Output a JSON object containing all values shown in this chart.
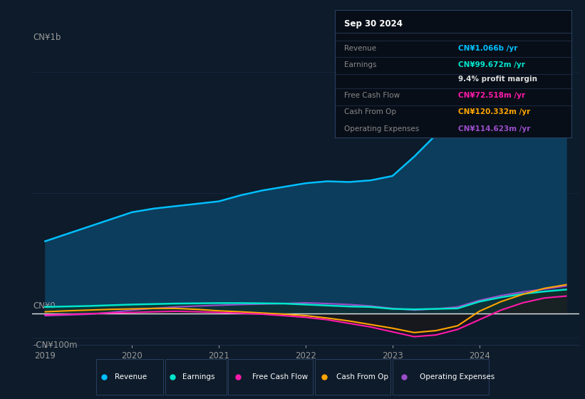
{
  "background_color": "#0d1b2a",
  "plot_bg_color": "#0d1b2a",
  "info_box_title": "Sep 30 2024",
  "info_box_bg": "#080e18",
  "info_box_border": "#2a4060",
  "x_labels": [
    "2019",
    "2020",
    "2021",
    "2022",
    "2023",
    "2024"
  ],
  "x_values": [
    2019.0,
    2019.25,
    2019.5,
    2019.75,
    2020.0,
    2020.25,
    2020.5,
    2020.75,
    2021.0,
    2021.25,
    2021.5,
    2021.75,
    2022.0,
    2022.25,
    2022.5,
    2022.75,
    2023.0,
    2023.25,
    2023.5,
    2023.75,
    2024.0,
    2024.25,
    2024.5,
    2024.75,
    2025.0
  ],
  "revenue": [
    300,
    330,
    360,
    390,
    420,
    435,
    445,
    455,
    465,
    490,
    510,
    525,
    540,
    548,
    545,
    552,
    570,
    650,
    740,
    840,
    910,
    960,
    1005,
    1050,
    1066
  ],
  "earnings": [
    28,
    30,
    32,
    35,
    38,
    40,
    42,
    43,
    44,
    44,
    43,
    42,
    38,
    34,
    30,
    28,
    20,
    18,
    20,
    22,
    50,
    68,
    82,
    92,
    100
  ],
  "free_cash_flow": [
    -5,
    -3,
    0,
    3,
    5,
    8,
    10,
    8,
    5,
    2,
    -2,
    -8,
    -15,
    -25,
    -40,
    -55,
    -75,
    -95,
    -88,
    -65,
    -25,
    15,
    45,
    65,
    73
  ],
  "cash_from_op": [
    8,
    12,
    15,
    18,
    20,
    22,
    22,
    18,
    12,
    8,
    3,
    -2,
    -8,
    -18,
    -30,
    -45,
    -60,
    -78,
    -70,
    -50,
    10,
    50,
    80,
    105,
    120
  ],
  "operating_expenses": [
    -8,
    -5,
    -2,
    5,
    15,
    22,
    28,
    32,
    35,
    38,
    40,
    42,
    45,
    42,
    38,
    32,
    22,
    15,
    20,
    28,
    55,
    75,
    90,
    102,
    115
  ],
  "revenue_line_color": "#00bfff",
  "revenue_fill_color": "#0d3d5c",
  "earnings_line_color": "#00e5cc",
  "earnings_fill_color": "#0a3530",
  "fcf_line_color": "#ff1aaa",
  "cfo_line_color": "#ffa500",
  "opex_line_color": "#9b4dca",
  "opex_fill_color": "#2a1a5e",
  "grid_color": "#1e3050",
  "text_color": "#999999",
  "white_line": "#ffffff",
  "ylim": [
    -130,
    1100
  ],
  "xlim_left": 2018.85,
  "xlim_right": 2025.15,
  "y_label_1b": "CN¥1b",
  "y_label_0": "CN¥0",
  "y_label_neg": "-CN¥100m",
  "legend_items": [
    {
      "label": "Revenue",
      "color": "#00bfff"
    },
    {
      "label": "Earnings",
      "color": "#00e5cc"
    },
    {
      "label": "Free Cash Flow",
      "color": "#ff1aaa"
    },
    {
      "label": "Cash From Op",
      "color": "#ffa500"
    },
    {
      "label": "Operating Expenses",
      "color": "#9b4dca"
    }
  ],
  "info_rows": [
    {
      "label": "Revenue",
      "value": "CN¥1.066b /yr",
      "label_color": "#888888",
      "value_color": "#00bfff"
    },
    {
      "label": "Earnings",
      "value": "CN¥99.672m /yr",
      "label_color": "#888888",
      "value_color": "#00e5cc"
    },
    {
      "label": "",
      "value": "9.4% profit margin",
      "label_color": "#888888",
      "value_color": "#dddddd"
    },
    {
      "label": "Free Cash Flow",
      "value": "CN¥72.518m /yr",
      "label_color": "#888888",
      "value_color": "#ff1aaa"
    },
    {
      "label": "Cash From Op",
      "value": "CN¥120.332m /yr",
      "label_color": "#888888",
      "value_color": "#ffa500"
    },
    {
      "label": "Operating Expenses",
      "value": "CN¥114.623m /yr",
      "label_color": "#888888",
      "value_color": "#9b4dca"
    }
  ]
}
